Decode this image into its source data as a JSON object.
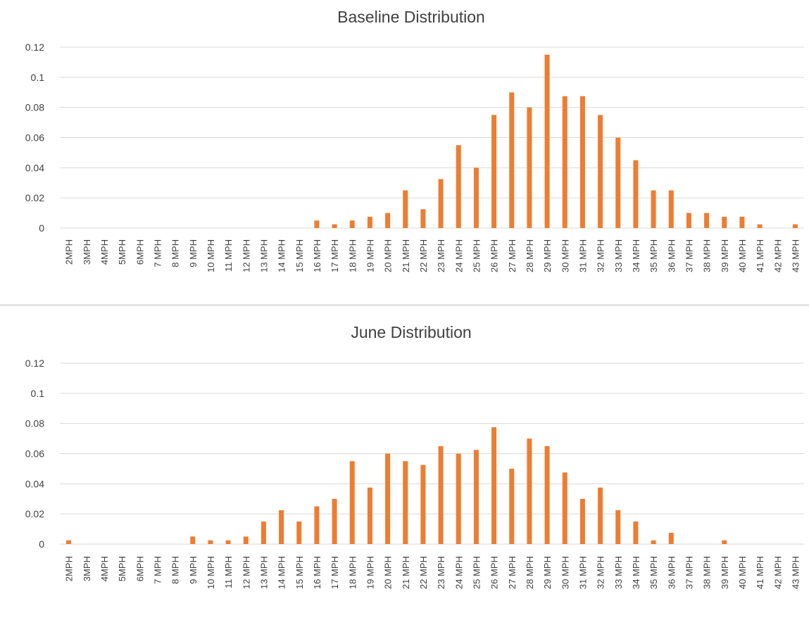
{
  "chart_data": [
    {
      "type": "bar",
      "title": "Baseline Distribution",
      "xlabel": "",
      "ylabel": "",
      "ylim": [
        0,
        0.12
      ],
      "yticks": [
        "0",
        "0.02",
        "0.04",
        "0.06",
        "0.08",
        "0.1",
        "0.12"
      ],
      "grid": true,
      "bar_color": "#ED7D31",
      "categories": [
        "2MPH",
        "3MPH",
        "4MPH",
        "5MPH",
        "6MPH",
        "7 MPH",
        "8 MPH",
        "9 MPH",
        "10 MPH",
        "11 MPH",
        "12 MPH",
        "13 MPH",
        "14 MPH",
        "15 MPH",
        "16 MPH",
        "17 MPH",
        "18 MPH",
        "19 MPH",
        "20 MPH",
        "21 MPH",
        "22 MPH",
        "23 MPH",
        "24 MPH",
        "25 MPH",
        "26 MPH",
        "27 MPH",
        "28 MPH",
        "29 MPH",
        "30 MPH",
        "31 MPH",
        "32 MPH",
        "33 MPH",
        "34 MPH",
        "35 MPH",
        "36 MPH",
        "37 MPH",
        "38 MPH",
        "39 MPH",
        "40 MPH",
        "41 MPH",
        "42 MPH",
        "43 MPH"
      ],
      "values": [
        0,
        0,
        0,
        0,
        0,
        0,
        0,
        0,
        0,
        0,
        0,
        0,
        0,
        0,
        0.005,
        0.0025,
        0.005,
        0.0075,
        0.01,
        0.025,
        0.0125,
        0.0325,
        0.055,
        0.04,
        0.075,
        0.09,
        0.08,
        0.115,
        0.0875,
        0.0875,
        0.075,
        0.06,
        0.045,
        0.025,
        0.025,
        0.01,
        0.01,
        0.0075,
        0.0075,
        0.0025,
        0,
        0.0025
      ]
    },
    {
      "type": "bar",
      "title": "June Distribution",
      "xlabel": "",
      "ylabel": "",
      "ylim": [
        0,
        0.12
      ],
      "yticks": [
        "0",
        "0.02",
        "0.04",
        "0.06",
        "0.08",
        "0.1",
        "0.12"
      ],
      "grid": true,
      "bar_color": "#ED7D31",
      "categories": [
        "2MPH",
        "3MPH",
        "4MPH",
        "5MPH",
        "6MPH",
        "7 MPH",
        "8 MPH",
        "9 MPH",
        "10 MPH",
        "11 MPH",
        "12 MPH",
        "13 MPH",
        "14 MPH",
        "15 MPH",
        "16 MPH",
        "17 MPH",
        "18 MPH",
        "19 MPH",
        "20 MPH",
        "21 MPH",
        "22 MPH",
        "23 MPH",
        "24 MPH",
        "25 MPH",
        "26 MPH",
        "27 MPH",
        "28 MPH",
        "29 MPH",
        "30 MPH",
        "31 MPH",
        "32 MPH",
        "33 MPH",
        "34 MPH",
        "35 MPH",
        "36 MPH",
        "37 MPH",
        "38 MPH",
        "39 MPH",
        "40 MPH",
        "41 MPH",
        "42 MPH",
        "43 MPH"
      ],
      "values": [
        0.0025,
        0,
        0,
        0,
        0,
        0,
        0,
        0.005,
        0.0025,
        0.0025,
        0.005,
        0.015,
        0.0225,
        0.015,
        0.025,
        0.03,
        0.055,
        0.0375,
        0.06,
        0.055,
        0.0525,
        0.065,
        0.06,
        0.0625,
        0.0775,
        0.05,
        0.07,
        0.065,
        0.0475,
        0.03,
        0.0375,
        0.0225,
        0.015,
        0.0025,
        0.0075,
        0,
        0,
        0.0025,
        0,
        0,
        0,
        0
      ]
    }
  ]
}
